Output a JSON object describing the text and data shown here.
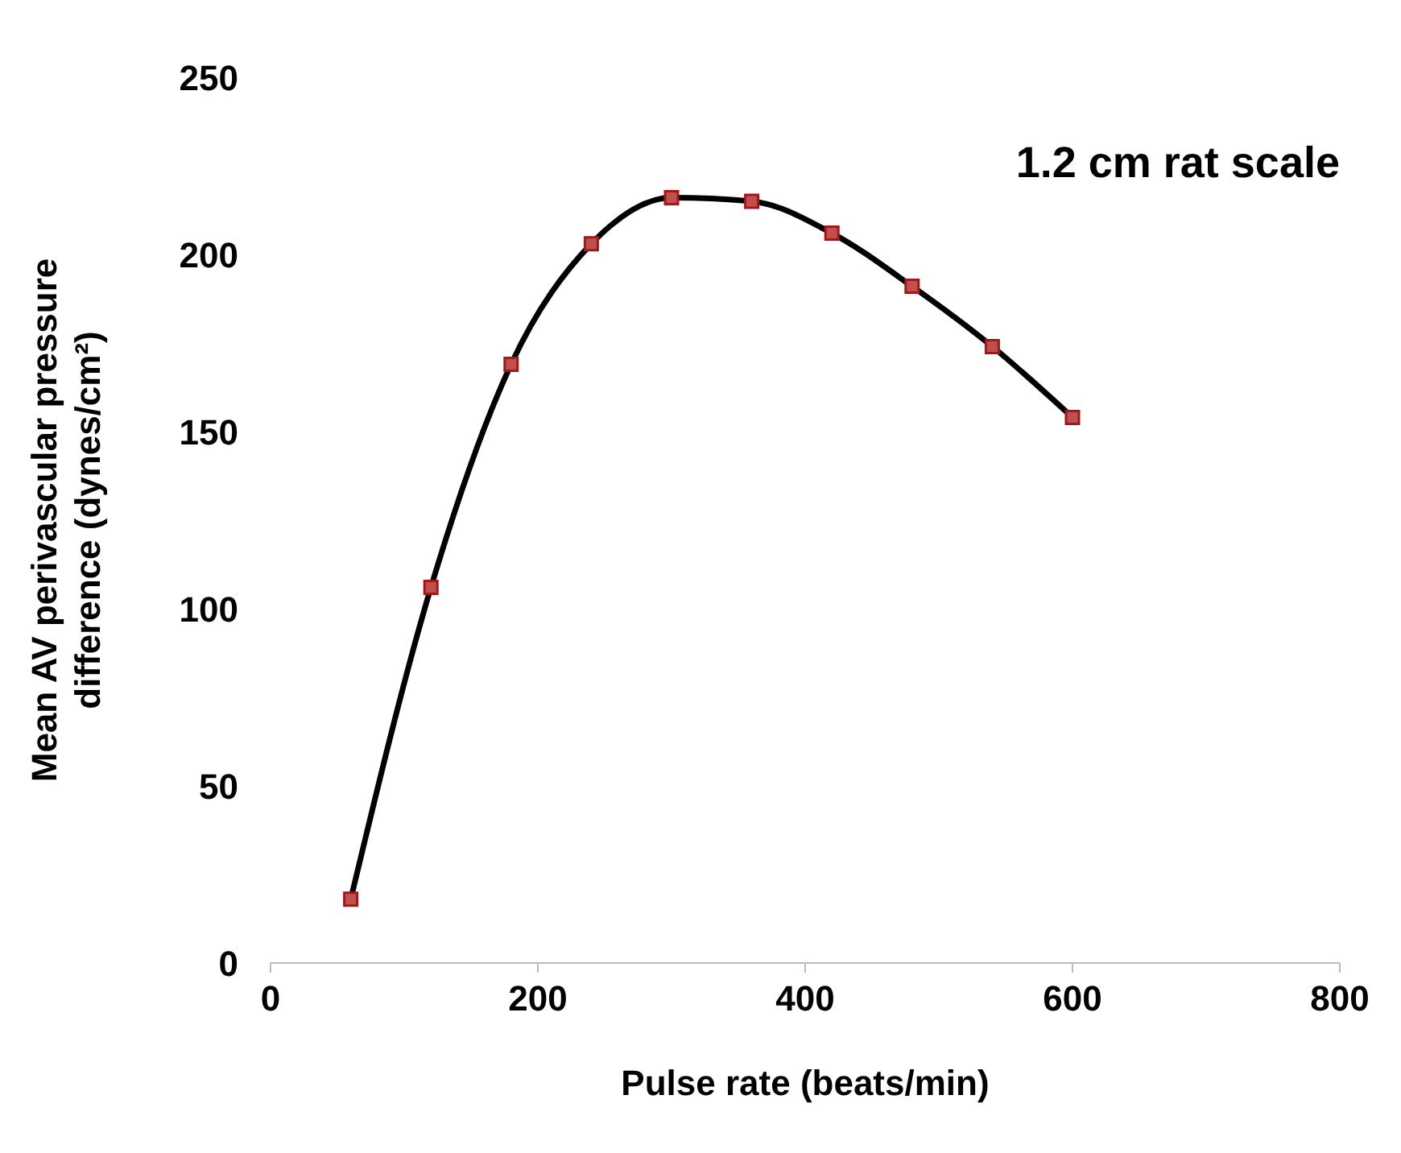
{
  "chart_data": {
    "type": "line",
    "xlabel": "Pulse rate (beats/min)",
    "ylabel": "Mean AV perivascular pressure difference (dynes/cm²)",
    "annotations": [
      "1.2 cm rat scale"
    ],
    "x": [
      60,
      120,
      180,
      240,
      300,
      360,
      420,
      480,
      540,
      600
    ],
    "series": [
      {
        "type": "line",
        "color": "#000000",
        "marker": "none",
        "values": [
          18,
          106,
          169,
          203,
          216,
          215,
          206,
          191,
          174,
          154
        ]
      },
      {
        "type": "scatter",
        "color": "#c0504d",
        "marker": "square",
        "values": [
          18,
          106,
          169,
          203,
          216,
          215,
          206,
          191,
          174,
          154
        ]
      }
    ],
    "xlim": [
      0,
      800
    ],
    "xticks": [
      0,
      200,
      400,
      600,
      800
    ],
    "ylim": [
      0,
      250
    ],
    "yticks": [
      0,
      50,
      100,
      150,
      200,
      250
    ],
    "grid": false
  }
}
